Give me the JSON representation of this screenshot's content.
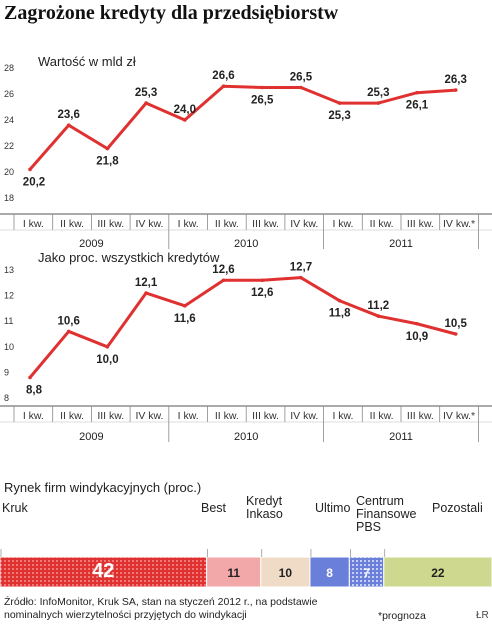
{
  "title": "Zagrożone kredyty dla przedsiębiorstw",
  "chart_data": [
    {
      "type": "line",
      "subtitle": "Wartość w mld zł",
      "categories": [
        "I kw.",
        "II kw.",
        "III kw.",
        "IV kw.",
        "I kw.",
        "II kw.",
        "III kw.",
        "IV kw.",
        "I kw.",
        "II kw.",
        "III kw.",
        "IV kw.*"
      ],
      "years": [
        "2009",
        "2010",
        "2011"
      ],
      "values": [
        20.2,
        23.6,
        21.8,
        25.3,
        24.0,
        26.6,
        26.5,
        26.5,
        25.3,
        25.3,
        26.1,
        26.3
      ],
      "labels": [
        "20,2",
        "23,6",
        "21,8",
        "25,3",
        "24,0",
        "26,6",
        "26,5",
        "26,5",
        "25,3",
        "25,3",
        "26,1",
        "26,3"
      ],
      "yticks": [
        "18",
        "20",
        "22",
        "24",
        "26",
        "28"
      ],
      "ylim": [
        18,
        28
      ],
      "grid": false
    },
    {
      "type": "line",
      "subtitle": "Jako proc. wszystkich kredytów",
      "categories": [
        "I kw.",
        "II kw.",
        "III kw.",
        "IV kw.",
        "I kw.",
        "II kw.",
        "III kw.",
        "IV kw.",
        "I kw.",
        "II kw.",
        "III kw.",
        "IV kw.*"
      ],
      "years": [
        "2009",
        "2010",
        "2011"
      ],
      "values": [
        8.8,
        10.6,
        10.0,
        12.1,
        11.6,
        12.6,
        12.6,
        12.7,
        11.8,
        11.2,
        10.9,
        10.5
      ],
      "labels": [
        "8,8",
        "10,6",
        "10,0",
        "12,1",
        "11,6",
        "12,6",
        "12,6",
        "12,7",
        "11,8",
        "11,2",
        "10,9",
        "10,5"
      ],
      "yticks": [
        "8",
        "9",
        "10",
        "11",
        "12",
        "13"
      ],
      "ylim": [
        8,
        13
      ],
      "grid": false
    },
    {
      "type": "bar",
      "subtitle": "Rynek firm windykacyjnych (proc.)",
      "categories": [
        "Kruk",
        "Best",
        "Kredyt Inkaso",
        "Ultimo",
        "Centrum Finansowe PBS",
        "Pozostali"
      ],
      "values": [
        42,
        11,
        10,
        8,
        7,
        22
      ],
      "labels": [
        "42",
        "11",
        "10",
        "8",
        "7",
        "22"
      ],
      "colors": [
        "#e03131",
        "#f2a8a8",
        "#f0dcc6",
        "#6a7fd9",
        "#6a7fd9",
        "#cfd88f"
      ],
      "stacked": true
    }
  ],
  "footer": {
    "source_line1": "Źródło: InfoMonitor, Kruk SA, stan na styczeń 2012 r., na podstawie",
    "source_line2": "nominalnych wierzytelności przyjętych do windykacji",
    "note": "*prognoza",
    "initials": "ŁR"
  }
}
